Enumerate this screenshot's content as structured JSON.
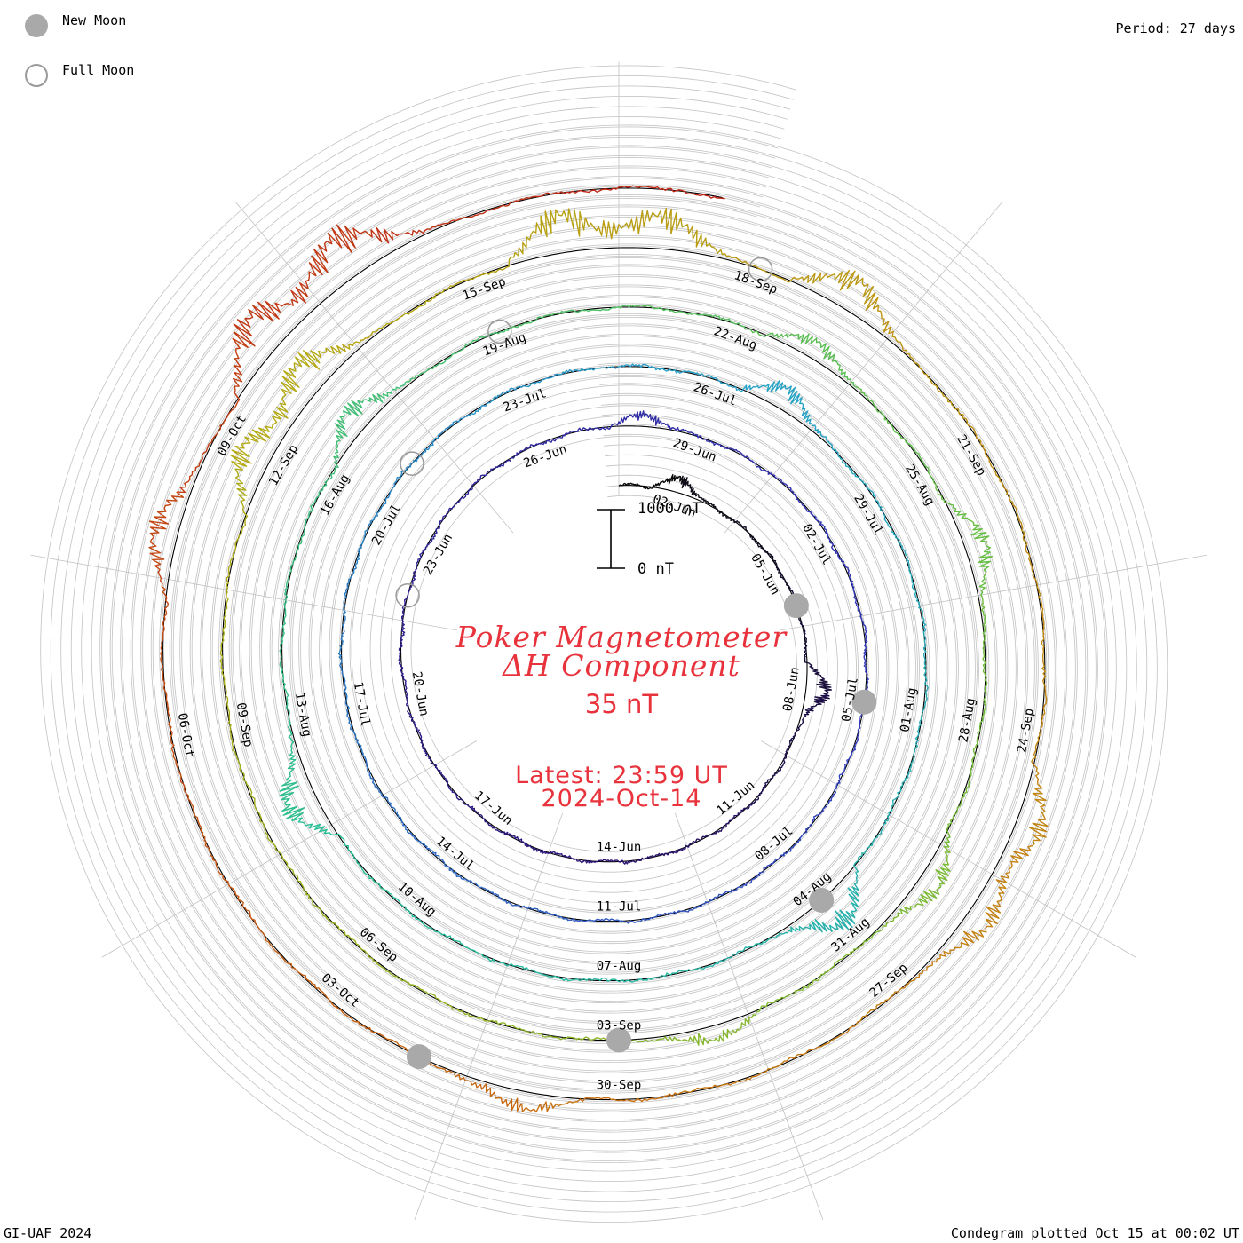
{
  "legend": {
    "new_moon": "New Moon",
    "full_moon": "Full Moon"
  },
  "period_text": "Period: 27 days",
  "title": {
    "line1": "Poker Magnetometer",
    "line2": "ΔH Component",
    "value": "35 nT"
  },
  "latest": {
    "time": "Latest: 23:59 UT",
    "date": "2024-Oct-14"
  },
  "scale": {
    "top": "1000 nT",
    "bottom": "0 nT"
  },
  "footer": {
    "left": "GI-UAF 2024",
    "right": "Condegram plotted Oct 15 at 00:02 UT"
  },
  "colors": {
    "title": "#e8323c",
    "grid": "#b4b4b4",
    "moon": "#a9a9a9"
  },
  "chart_data": {
    "type": "line",
    "subtype": "spiral condegram (polar time series, 27-day rotation)",
    "period_days": 27,
    "start": "2024-06-01",
    "end": "2024-10-14",
    "unit": "nT",
    "scale_bar_nT": 1000,
    "date_labels": [
      "02-Jun",
      "05-Jun",
      "08-Jun",
      "11-Jun",
      "14-Jun",
      "17-Jun",
      "20-Jun",
      "23-Jun",
      "26-Jun",
      "29-Jun",
      "02-Jul",
      "05-Jul",
      "08-Jul",
      "11-Jul",
      "14-Jul",
      "17-Jul",
      "20-Jul",
      "23-Jul",
      "26-Jul",
      "29-Jul",
      "01-Aug",
      "04-Aug",
      "07-Aug",
      "10-Aug",
      "13-Aug",
      "16-Aug",
      "19-Aug",
      "22-Aug",
      "25-Aug",
      "28-Aug",
      "31-Aug",
      "03-Sep",
      "06-Sep",
      "09-Sep",
      "12-Sep",
      "15-Sep",
      "18-Sep",
      "21-Sep",
      "24-Sep",
      "27-Sep",
      "30-Sep",
      "03-Oct",
      "06-Oct",
      "09-Oct"
    ],
    "new_moons": [
      "2024-06-06",
      "2024-07-05",
      "2024-08-04",
      "2024-09-03",
      "2024-10-02"
    ],
    "full_moons": [
      "2024-06-22",
      "2024-07-21",
      "2024-08-19",
      "2024-09-18"
    ],
    "disturbances": [
      {
        "date": "2024-06-02",
        "peak_nT": 300
      },
      {
        "date": "2024-06-08",
        "peak_nT": 450
      },
      {
        "date": "2024-06-28",
        "peak_nT": 250
      },
      {
        "date": "2024-07-27",
        "peak_nT": 450
      },
      {
        "date": "2024-08-04",
        "peak_nT": 700
      },
      {
        "date": "2024-08-12",
        "peak_nT": 650
      },
      {
        "date": "2024-08-17",
        "peak_nT": 500
      },
      {
        "date": "2024-08-23",
        "peak_nT": 350
      },
      {
        "date": "2024-08-26",
        "peak_nT": 450
      },
      {
        "date": "2024-08-30",
        "peak_nT": 450
      },
      {
        "date": "2024-09-02",
        "peak_nT": 300
      },
      {
        "date": "2024-09-12",
        "peak_nT": 650
      },
      {
        "date": "2024-09-13",
        "peak_nT": 700
      },
      {
        "date": "2024-09-16",
        "peak_nT": 800
      },
      {
        "date": "2024-09-17",
        "peak_nT": 700
      },
      {
        "date": "2024-09-19",
        "peak_nT": 650
      },
      {
        "date": "2024-09-25",
        "peak_nT": 550
      },
      {
        "date": "2024-09-26",
        "peak_nT": 500
      },
      {
        "date": "2024-10-01",
        "peak_nT": 350
      },
      {
        "date": "2024-10-08",
        "peak_nT": 500
      },
      {
        "date": "2024-10-10",
        "peak_nT": 850
      },
      {
        "date": "2024-10-11",
        "peak_nT": 900
      }
    ]
  }
}
